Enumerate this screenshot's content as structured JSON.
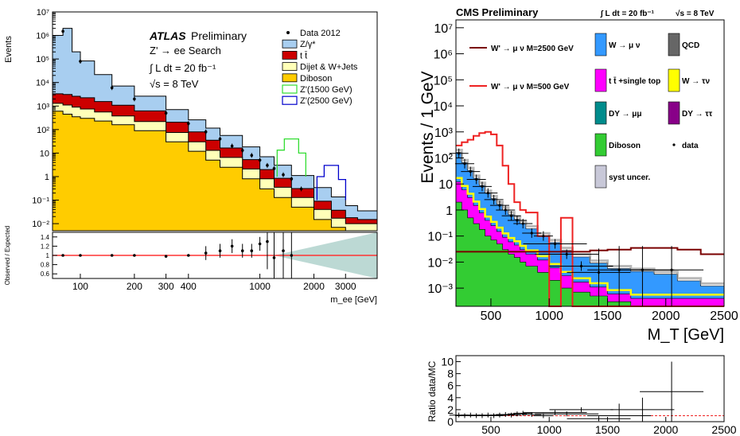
{
  "chart_data": [
    {
      "type": "area",
      "scale": "log-log",
      "overlay_text": [
        "ATLAS",
        "Preliminary",
        "Z' → ee Search",
        "∫ L dt = 20 fb⁻¹",
        "√s = 8 TeV"
      ],
      "xlabel": "m_ee [GeV]",
      "ylabel": "Events",
      "xlim": [
        70,
        4500
      ],
      "ylim": [
        0.005,
        10000000
      ],
      "x_ticks": [
        "100",
        "200",
        "300",
        "400",
        "1000",
        "2000",
        "3000"
      ],
      "y_ticks": [
        "10⁻²",
        "10⁻¹",
        "1",
        "10",
        "10²",
        "10³",
        "10⁴",
        "10⁵",
        "10⁶",
        "10⁷"
      ],
      "legend": [
        "Data 2012",
        "Z/γ*",
        "t t̄",
        "Dijet & W+Jets",
        "Diboson",
        "Z'(1500 GeV)",
        "Z'(2500 GeV)"
      ],
      "legend_placement": "top-right",
      "colors": {
        "z_gamma": "#a8cef0",
        "ttbar": "#cc0000",
        "dijet": "#ffffb8",
        "diboson": "#ffcc00",
        "zp1500": "#33dd33",
        "zp2500": "#0000cc",
        "ratio_line": "#ff3333",
        "ratio_band": "#9fc9c2"
      },
      "x": [
        70,
        80,
        90,
        100,
        120,
        150,
        200,
        300,
        400,
        500,
        600,
        800,
        1000,
        1200,
        1500,
        2000,
        2500,
        3000,
        3500,
        4500
      ],
      "series": [
        {
          "name": "Diboson",
          "values": [
            600,
            450,
            350,
            300,
            230,
            160,
            90,
            30,
            12,
            5,
            2.5,
            0.8,
            0.3,
            0.13,
            0.05,
            0.015,
            0.007,
            0.005,
            0.005,
            0.005
          ]
        },
        {
          "name": "Dijet & W+Jets",
          "values": [
            700,
            650,
            550,
            450,
            330,
            220,
            130,
            45,
            18,
            8,
            4,
            1.3,
            0.5,
            0.22,
            0.08,
            0.025,
            0.01,
            0.005,
            0.005,
            0.005
          ]
        },
        {
          "name": "t t̄",
          "values": [
            2000,
            2000,
            1700,
            1500,
            1000,
            700,
            400,
            130,
            50,
            22,
            10,
            3.2,
            1.2,
            0.5,
            0.18,
            0.05,
            0.02,
            0.008,
            0.005,
            0.005
          ]
        },
        {
          "name": "Z/γ*",
          "values": [
            1000000,
            2000000,
            200000,
            80000,
            20000,
            6000,
            2000,
            500,
            180,
            80,
            40,
            13,
            5,
            2.2,
            0.8,
            0.25,
            0.1,
            0.04,
            0.02,
            0.01
          ]
        },
        {
          "name": "Z'(1500 GeV)",
          "peak_x": 1500,
          "peak_value": 40
        },
        {
          "name": "Z'(2500 GeV)",
          "peak_x": 2500,
          "peak_value": 3
        }
      ],
      "data_points": {
        "x": [
          80,
          100,
          150,
          200,
          300,
          400,
          500,
          600,
          700,
          800,
          900,
          1000,
          1100,
          1200,
          1350,
          1500,
          1700
        ],
        "y": [
          1500000,
          80000,
          6000,
          2000,
          500,
          180,
          80,
          40,
          20,
          13,
          8,
          5,
          3,
          2.2,
          1.2,
          0.8,
          0.3
        ]
      },
      "ratio_panel": {
        "ylabel": "Observed / Expected",
        "y_ticks": [
          "0.6",
          "0.8",
          "1",
          "1.2",
          "1.4"
        ],
        "ylim": [
          0.5,
          1.5
        ],
        "x": [
          80,
          100,
          150,
          200,
          300,
          400,
          500,
          600,
          700,
          800,
          900,
          1000,
          1100,
          1200,
          1350,
          1500
        ],
        "values": [
          1.0,
          1.0,
          1.0,
          1.0,
          0.98,
          1.0,
          1.05,
          1.1,
          1.2,
          1.1,
          1.1,
          1.25,
          1.3,
          0.95,
          1.1,
          1.0
        ]
      }
    },
    {
      "type": "area",
      "scale": "linear-x log-y",
      "title": "CMS Preliminary",
      "header_lumi": "∫ L dt = 20 fb⁻¹",
      "header_energy": "√s = 8 TeV",
      "xlabel": "M_T  [GeV]",
      "ylabel": "Events / 1 GeV",
      "xlim": [
        200,
        2500
      ],
      "ylim": [
        0.0002,
        20000000
      ],
      "x_ticks": [
        "500",
        "1000",
        "1500",
        "2000",
        "2500"
      ],
      "y_ticks": [
        "10⁻³",
        "10⁻²",
        "10⁻¹",
        "1",
        "10",
        "10²",
        "10³",
        "10⁴",
        "10⁵",
        "10⁶",
        "10⁷"
      ],
      "legend": [
        "W' → μ ν M=2500 GeV",
        "W' → μ ν M=500 GeV",
        "W → μ ν",
        "QCD",
        "t t̄ +single top",
        "W → τν",
        "DY → μμ",
        "DY → ττ",
        "Diboson",
        "data",
        "syst uncer."
      ],
      "colors": {
        "w_munu": "#3399ff",
        "qcd": "#666666",
        "ttbar": "#ff00ff",
        "w_taunu": "#ffff00",
        "dy_mumu": "#008c8c",
        "dy_tautau": "#880088",
        "diboson": "#33cc33",
        "wp2500": "#7a0000",
        "wp500": "#ee2222",
        "ratio_line": "#ee2222"
      },
      "bin_edges": [
        200,
        250,
        300,
        350,
        400,
        450,
        500,
        550,
        600,
        650,
        700,
        750,
        800,
        900,
        1000,
        1100,
        1200,
        1350,
        1500,
        1700,
        1900,
        2100,
        2300,
        2500
      ],
      "series": [
        {
          "name": "Diboson",
          "values": [
            2,
            1,
            0.5,
            0.3,
            0.18,
            0.1,
            0.07,
            0.05,
            0.03,
            0.02,
            0.015,
            0.01,
            0.007,
            0.004,
            0.002,
            0.001,
            0.0007,
            0.0005,
            0.0003,
            0.0002,
            0.0002,
            0.0002,
            0.0002
          ]
        },
        {
          "name": "t t̄ +single top",
          "values": [
            10,
            5,
            2.5,
            1.2,
            0.6,
            0.3,
            0.18,
            0.1,
            0.06,
            0.04,
            0.03,
            0.02,
            0.013,
            0.008,
            0.004,
            0.002,
            0.001,
            0.0006,
            0.0003,
            0.0002,
            0.0002,
            0.0002,
            0.0002
          ]
        },
        {
          "name": "W → μ ν",
          "values": [
            150,
            60,
            30,
            15,
            8,
            4,
            2.5,
            1.5,
            0.9,
            0.6,
            0.4,
            0.27,
            0.17,
            0.09,
            0.05,
            0.025,
            0.014,
            0.008,
            0.005,
            0.004,
            0.003,
            0.0015,
            0.0008
          ]
        },
        {
          "name": "W' → μ ν M=500 GeV",
          "values": [
            300,
            400,
            500,
            700,
            900,
            1000,
            800,
            300,
            50,
            10,
            2,
            1,
            0.8,
            0.1,
            0.0001,
            0.5,
            0.0001,
            0.0001,
            0.0001,
            0.0001,
            0.0001,
            0.0001,
            0.0001
          ]
        },
        {
          "name": "W' → μ ν M=2500 GeV",
          "values": [
            0.025,
            0.025,
            0.025,
            0.025,
            0.025,
            0.025,
            0.025,
            0.025,
            0.025,
            0.025,
            0.025,
            0.025,
            0.025,
            0.025,
            0.025,
            0.025,
            0.025,
            0.028,
            0.03,
            0.035,
            0.035,
            0.03,
            0.02
          ]
        }
      ],
      "data_points": {
        "x": [
          225,
          275,
          325,
          375,
          425,
          475,
          525,
          575,
          625,
          675,
          725,
          775,
          850,
          950,
          1050,
          1150,
          1275,
          1425,
          1600,
          1800,
          2050
        ],
        "y": [
          150,
          60,
          30,
          15,
          8,
          4.5,
          2.5,
          1.5,
          1,
          0.6,
          0.4,
          0.3,
          0.13,
          0.1,
          0.05,
          0.02,
          0.007,
          0.004,
          0.005,
          0.005,
          0.005
        ]
      },
      "ratio_panel": {
        "ylabel": "Ratio data/MC",
        "y_ticks": [
          "0",
          "2",
          "4",
          "6",
          "8",
          "10"
        ],
        "x_ticks": [
          "500",
          "1000",
          "1500",
          "2000",
          "2500"
        ],
        "ylim": [
          0,
          11
        ],
        "x": [
          225,
          275,
          325,
          375,
          425,
          475,
          525,
          575,
          625,
          675,
          725,
          775,
          850,
          950,
          1050,
          1150,
          1275,
          1425,
          1600,
          1800,
          2050
        ],
        "values": [
          1.1,
          1.0,
          1.1,
          1.0,
          1.0,
          1.1,
          1.0,
          1.1,
          1.2,
          1.1,
          1.3,
          1.4,
          1.2,
          1.0,
          1.5,
          1.3,
          2.0,
          0.5,
          1.0,
          2.0,
          5.0
        ]
      }
    }
  ]
}
